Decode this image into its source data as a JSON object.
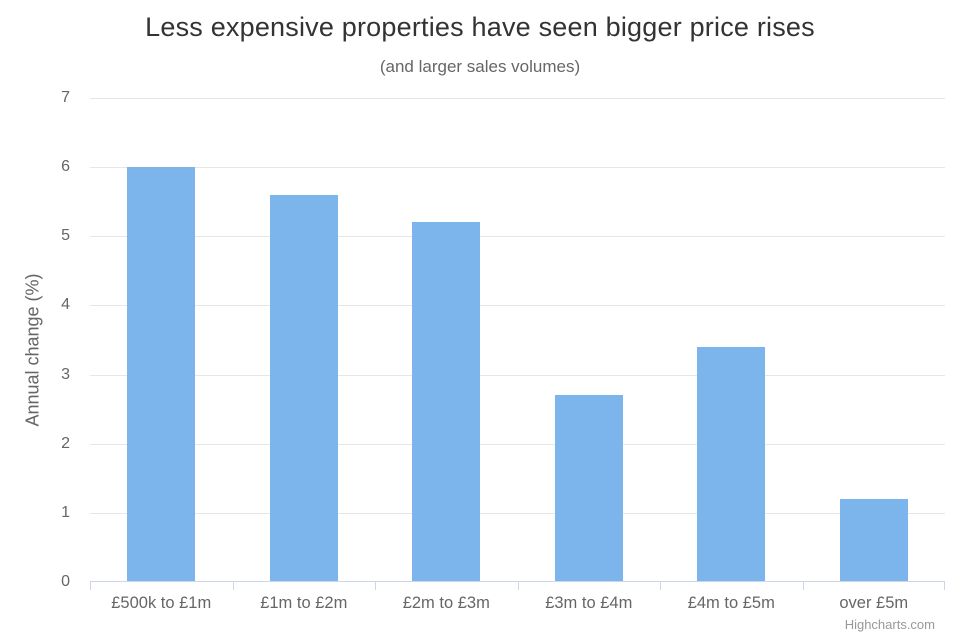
{
  "chart_data": {
    "type": "bar",
    "orientation": "vertical",
    "title": "Less expensive properties have seen bigger price rises",
    "subtitle": "(and larger sales volumes)",
    "categories": [
      "£500k to £1m",
      "£1m to £2m",
      "£2m to £3m",
      "£3m to £4m",
      "£4m to £5m",
      "over £5m"
    ],
    "values": [
      6.0,
      5.6,
      5.2,
      2.7,
      3.4,
      1.2
    ],
    "xlabel": "",
    "ylabel": "Annual change (%)",
    "ylim": [
      0,
      7
    ],
    "yticks": [
      0,
      1,
      2,
      3,
      4,
      5,
      6,
      7
    ],
    "grid": true,
    "legend": "none",
    "credits_label": "Highcharts.com",
    "colors": {
      "bar": "#7cb5ec",
      "title": "#333333",
      "subtitle": "#666666",
      "axis_label": "#666666",
      "axis_line": "#ccd6eb",
      "gridline": "#e6e6e6",
      "credits": "#999999",
      "background": "#ffffff"
    }
  }
}
